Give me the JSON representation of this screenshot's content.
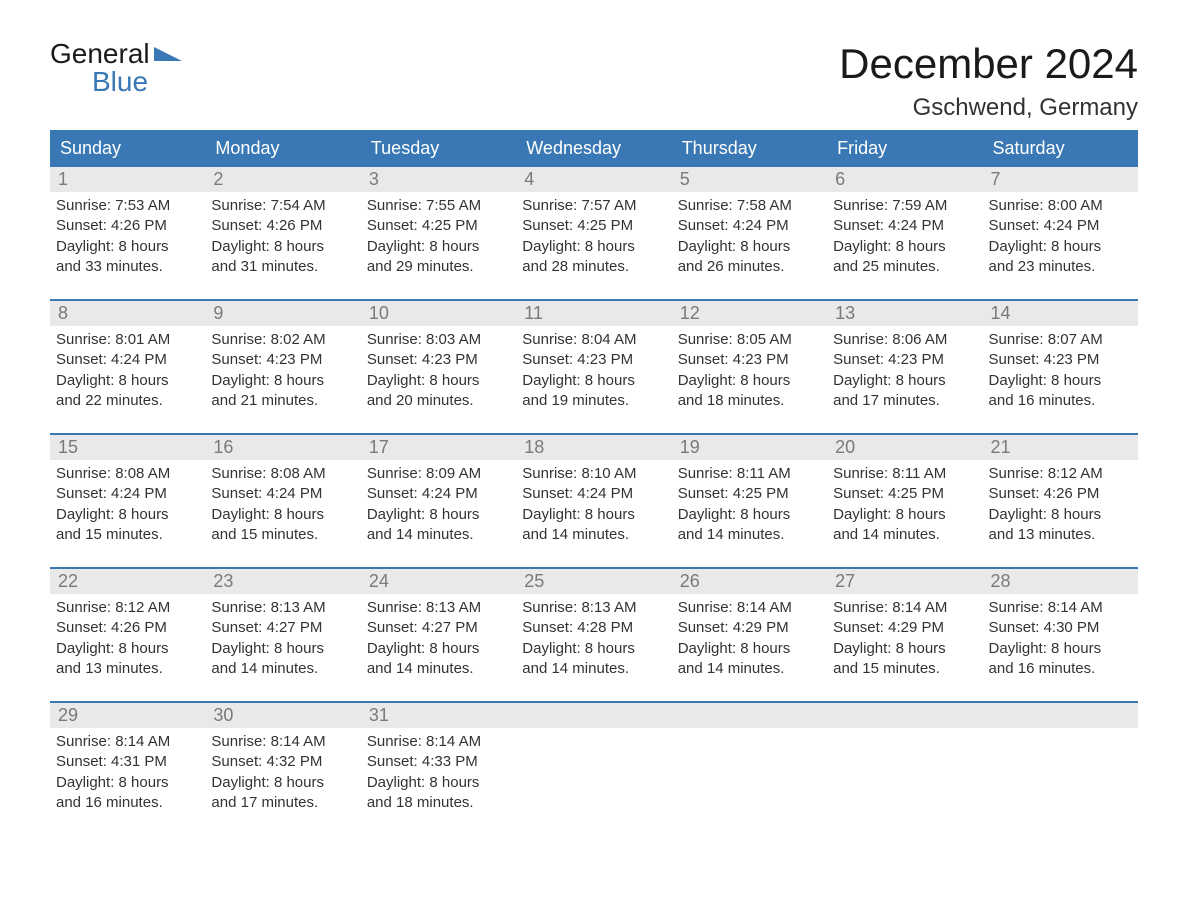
{
  "logo": {
    "text1": "General",
    "text2": "Blue"
  },
  "title": "December 2024",
  "location": "Gschwend, Germany",
  "colors": {
    "header_bg": "#3a78b5",
    "header_text": "#ffffff",
    "daynum_bg": "#e9e9e9",
    "daynum_text": "#7a7a7a",
    "body_text": "#333333",
    "divider": "#3a78b5",
    "page_bg": "#ffffff"
  },
  "fonts": {
    "title_size": 42,
    "location_size": 24,
    "weekday_size": 18,
    "body_size": 15
  },
  "weekdays": [
    "Sunday",
    "Monday",
    "Tuesday",
    "Wednesday",
    "Thursday",
    "Friday",
    "Saturday"
  ],
  "weeks": [
    [
      {
        "n": "1",
        "sunrise": "7:53 AM",
        "sunset": "4:26 PM",
        "dl1": "Daylight: 8 hours",
        "dl2": "and 33 minutes."
      },
      {
        "n": "2",
        "sunrise": "7:54 AM",
        "sunset": "4:26 PM",
        "dl1": "Daylight: 8 hours",
        "dl2": "and 31 minutes."
      },
      {
        "n": "3",
        "sunrise": "7:55 AM",
        "sunset": "4:25 PM",
        "dl1": "Daylight: 8 hours",
        "dl2": "and 29 minutes."
      },
      {
        "n": "4",
        "sunrise": "7:57 AM",
        "sunset": "4:25 PM",
        "dl1": "Daylight: 8 hours",
        "dl2": "and 28 minutes."
      },
      {
        "n": "5",
        "sunrise": "7:58 AM",
        "sunset": "4:24 PM",
        "dl1": "Daylight: 8 hours",
        "dl2": "and 26 minutes."
      },
      {
        "n": "6",
        "sunrise": "7:59 AM",
        "sunset": "4:24 PM",
        "dl1": "Daylight: 8 hours",
        "dl2": "and 25 minutes."
      },
      {
        "n": "7",
        "sunrise": "8:00 AM",
        "sunset": "4:24 PM",
        "dl1": "Daylight: 8 hours",
        "dl2": "and 23 minutes."
      }
    ],
    [
      {
        "n": "8",
        "sunrise": "8:01 AM",
        "sunset": "4:24 PM",
        "dl1": "Daylight: 8 hours",
        "dl2": "and 22 minutes."
      },
      {
        "n": "9",
        "sunrise": "8:02 AM",
        "sunset": "4:23 PM",
        "dl1": "Daylight: 8 hours",
        "dl2": "and 21 minutes."
      },
      {
        "n": "10",
        "sunrise": "8:03 AM",
        "sunset": "4:23 PM",
        "dl1": "Daylight: 8 hours",
        "dl2": "and 20 minutes."
      },
      {
        "n": "11",
        "sunrise": "8:04 AM",
        "sunset": "4:23 PM",
        "dl1": "Daylight: 8 hours",
        "dl2": "and 19 minutes."
      },
      {
        "n": "12",
        "sunrise": "8:05 AM",
        "sunset": "4:23 PM",
        "dl1": "Daylight: 8 hours",
        "dl2": "and 18 minutes."
      },
      {
        "n": "13",
        "sunrise": "8:06 AM",
        "sunset": "4:23 PM",
        "dl1": "Daylight: 8 hours",
        "dl2": "and 17 minutes."
      },
      {
        "n": "14",
        "sunrise": "8:07 AM",
        "sunset": "4:23 PM",
        "dl1": "Daylight: 8 hours",
        "dl2": "and 16 minutes."
      }
    ],
    [
      {
        "n": "15",
        "sunrise": "8:08 AM",
        "sunset": "4:24 PM",
        "dl1": "Daylight: 8 hours",
        "dl2": "and 15 minutes."
      },
      {
        "n": "16",
        "sunrise": "8:08 AM",
        "sunset": "4:24 PM",
        "dl1": "Daylight: 8 hours",
        "dl2": "and 15 minutes."
      },
      {
        "n": "17",
        "sunrise": "8:09 AM",
        "sunset": "4:24 PM",
        "dl1": "Daylight: 8 hours",
        "dl2": "and 14 minutes."
      },
      {
        "n": "18",
        "sunrise": "8:10 AM",
        "sunset": "4:24 PM",
        "dl1": "Daylight: 8 hours",
        "dl2": "and 14 minutes."
      },
      {
        "n": "19",
        "sunrise": "8:11 AM",
        "sunset": "4:25 PM",
        "dl1": "Daylight: 8 hours",
        "dl2": "and 14 minutes."
      },
      {
        "n": "20",
        "sunrise": "8:11 AM",
        "sunset": "4:25 PM",
        "dl1": "Daylight: 8 hours",
        "dl2": "and 14 minutes."
      },
      {
        "n": "21",
        "sunrise": "8:12 AM",
        "sunset": "4:26 PM",
        "dl1": "Daylight: 8 hours",
        "dl2": "and 13 minutes."
      }
    ],
    [
      {
        "n": "22",
        "sunrise": "8:12 AM",
        "sunset": "4:26 PM",
        "dl1": "Daylight: 8 hours",
        "dl2": "and 13 minutes."
      },
      {
        "n": "23",
        "sunrise": "8:13 AM",
        "sunset": "4:27 PM",
        "dl1": "Daylight: 8 hours",
        "dl2": "and 14 minutes."
      },
      {
        "n": "24",
        "sunrise": "8:13 AM",
        "sunset": "4:27 PM",
        "dl1": "Daylight: 8 hours",
        "dl2": "and 14 minutes."
      },
      {
        "n": "25",
        "sunrise": "8:13 AM",
        "sunset": "4:28 PM",
        "dl1": "Daylight: 8 hours",
        "dl2": "and 14 minutes."
      },
      {
        "n": "26",
        "sunrise": "8:14 AM",
        "sunset": "4:29 PM",
        "dl1": "Daylight: 8 hours",
        "dl2": "and 14 minutes."
      },
      {
        "n": "27",
        "sunrise": "8:14 AM",
        "sunset": "4:29 PM",
        "dl1": "Daylight: 8 hours",
        "dl2": "and 15 minutes."
      },
      {
        "n": "28",
        "sunrise": "8:14 AM",
        "sunset": "4:30 PM",
        "dl1": "Daylight: 8 hours",
        "dl2": "and 16 minutes."
      }
    ],
    [
      {
        "n": "29",
        "sunrise": "8:14 AM",
        "sunset": "4:31 PM",
        "dl1": "Daylight: 8 hours",
        "dl2": "and 16 minutes."
      },
      {
        "n": "30",
        "sunrise": "8:14 AM",
        "sunset": "4:32 PM",
        "dl1": "Daylight: 8 hours",
        "dl2": "and 17 minutes."
      },
      {
        "n": "31",
        "sunrise": "8:14 AM",
        "sunset": "4:33 PM",
        "dl1": "Daylight: 8 hours",
        "dl2": "and 18 minutes."
      },
      null,
      null,
      null,
      null
    ]
  ],
  "labels": {
    "sunrise_prefix": "Sunrise: ",
    "sunset_prefix": "Sunset: "
  }
}
